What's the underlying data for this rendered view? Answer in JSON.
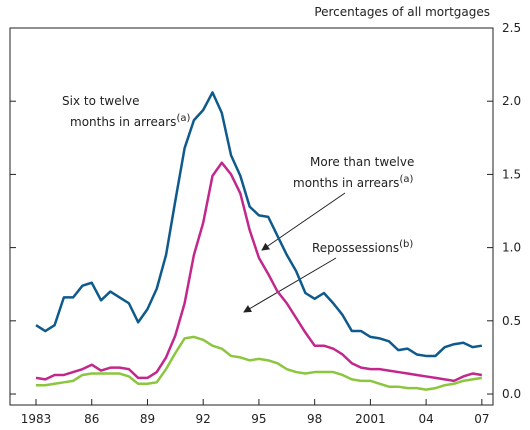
{
  "chart_data": {
    "type": "line",
    "y_axis_label": "Percentages of all mortgages",
    "x": [
      1983,
      1983.5,
      1984,
      1984.5,
      1985,
      1985.5,
      1986,
      1986.5,
      1987,
      1987.5,
      1988,
      1988.5,
      1989,
      1989.5,
      1990,
      1990.5,
      1991,
      1991.5,
      1992,
      1992.5,
      1993,
      1993.5,
      1994,
      1994.5,
      1995,
      1995.5,
      1996,
      1996.5,
      1997,
      1997.5,
      1998,
      1998.5,
      1999,
      1999.5,
      2000,
      2000.5,
      2001,
      2001.5,
      2002,
      2002.5,
      2003,
      2003.5,
      2004,
      2004.5,
      2005,
      2005.5,
      2006,
      2006.5,
      2007
    ],
    "series": [
      {
        "name": "Six to twelve months in arrears",
        "color": "#0f5a8c",
        "values": [
          0.47,
          0.43,
          0.47,
          0.66,
          0.66,
          0.74,
          0.76,
          0.64,
          0.7,
          0.66,
          0.62,
          0.49,
          0.58,
          0.72,
          0.95,
          1.32,
          1.68,
          1.87,
          1.94,
          2.06,
          1.92,
          1.63,
          1.49,
          1.28,
          1.22,
          1.21,
          1.08,
          0.95,
          0.84,
          0.69,
          0.65,
          0.69,
          0.62,
          0.54,
          0.43,
          0.43,
          0.39,
          0.38,
          0.36,
          0.3,
          0.31,
          0.27,
          0.26,
          0.26,
          0.32,
          0.34,
          0.35,
          0.32,
          0.33
        ]
      },
      {
        "name": "More than twelve months in arrears",
        "color": "#c2288c",
        "values": [
          0.11,
          0.1,
          0.13,
          0.13,
          0.15,
          0.17,
          0.2,
          0.16,
          0.18,
          0.18,
          0.17,
          0.11,
          0.11,
          0.15,
          0.25,
          0.4,
          0.62,
          0.95,
          1.17,
          1.49,
          1.58,
          1.5,
          1.37,
          1.12,
          0.93,
          0.82,
          0.7,
          0.62,
          0.52,
          0.42,
          0.33,
          0.33,
          0.31,
          0.27,
          0.21,
          0.18,
          0.17,
          0.17,
          0.16,
          0.15,
          0.14,
          0.13,
          0.12,
          0.11,
          0.1,
          0.09,
          0.12,
          0.14,
          0.13
        ]
      },
      {
        "name": "Repossessions",
        "color": "#8cc63f",
        "values": [
          0.06,
          0.06,
          0.07,
          0.08,
          0.09,
          0.13,
          0.14,
          0.14,
          0.14,
          0.14,
          0.12,
          0.07,
          0.07,
          0.08,
          0.17,
          0.28,
          0.38,
          0.39,
          0.37,
          0.33,
          0.31,
          0.26,
          0.25,
          0.23,
          0.24,
          0.23,
          0.21,
          0.17,
          0.15,
          0.14,
          0.15,
          0.15,
          0.15,
          0.13,
          0.1,
          0.09,
          0.09,
          0.07,
          0.05,
          0.05,
          0.04,
          0.04,
          0.03,
          0.04,
          0.06,
          0.07,
          0.09,
          0.1,
          0.11
        ]
      }
    ],
    "annotations": [
      {
        "lines": [
          "Six to twelve",
          "months in arrears"
        ],
        "sup": "(a)"
      },
      {
        "lines": [
          "More than twelve",
          "months in arrears"
        ],
        "sup": "(a)"
      },
      {
        "lines": [
          "Repossessions"
        ],
        "sup": "(b)"
      }
    ],
    "xlim": [
      1981.6,
      2007.6
    ],
    "xticks": [
      {
        "value": 1983,
        "label": "1983"
      },
      {
        "value": 1986,
        "label": "86"
      },
      {
        "value": 1989,
        "label": "89"
      },
      {
        "value": 1992,
        "label": "92"
      },
      {
        "value": 1995,
        "label": "95"
      },
      {
        "value": 1998,
        "label": "98"
      },
      {
        "value": 2001,
        "label": "2001"
      },
      {
        "value": 2004,
        "label": "04"
      },
      {
        "value": 2007,
        "label": "07"
      }
    ],
    "ylim": [
      -0.075,
      2.5
    ],
    "yticks": [
      {
        "value": 0,
        "label": "0.0"
      },
      0.5,
      {
        "value": 1,
        "label": "1.0"
      },
      1.5,
      {
        "value": 2,
        "label": "2.0"
      },
      2.5
    ]
  }
}
